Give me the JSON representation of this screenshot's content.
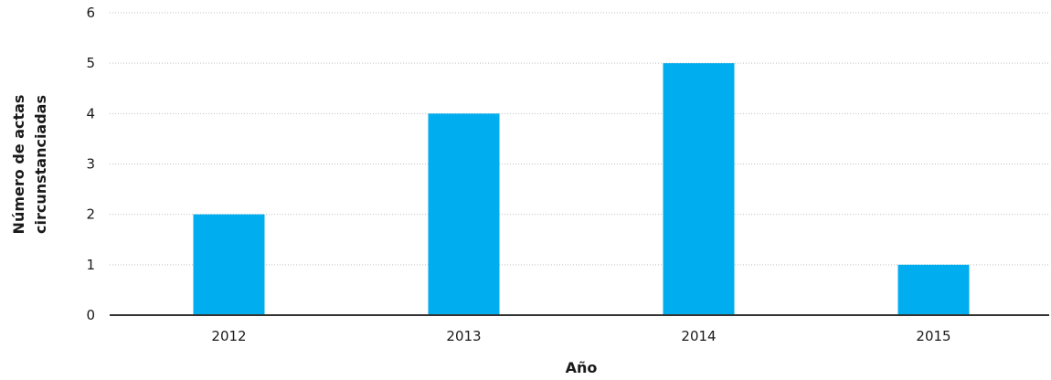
{
  "chart_data": {
    "type": "bar",
    "categories": [
      "2012",
      "2013",
      "2014",
      "2015"
    ],
    "values": [
      2,
      4,
      5,
      1
    ],
    "title": "",
    "xlabel": "Año",
    "ylabel_lines": [
      "Número de actas",
      "circunstanciadas"
    ],
    "ylim": [
      0,
      6
    ],
    "yticks": [
      "0",
      "1",
      "2",
      "3",
      "4",
      "5",
      "6"
    ],
    "grid": true,
    "grid_style": "dotted",
    "legend": "none",
    "bar_color": "#00adef",
    "axis_color": "#333333",
    "grid_color": "#bfbfbf"
  }
}
